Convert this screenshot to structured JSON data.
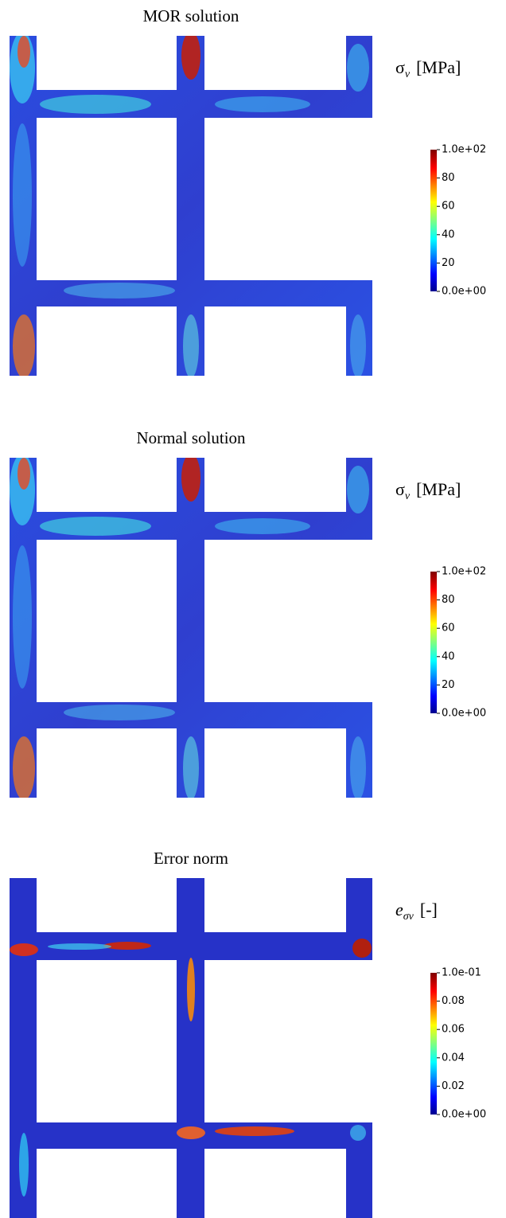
{
  "panels": [
    {
      "title": "MOR solution",
      "colorbar": {
        "symbol": "σ",
        "subscript": "v",
        "unit": "[MPa]",
        "lim": [
          0,
          100
        ],
        "ticks": [
          {
            "value": 100,
            "label": "1.0e+02"
          },
          80,
          60,
          40,
          20,
          {
            "value": 0,
            "label": "0.0e+00"
          }
        ]
      }
    },
    {
      "title": "Normal solution",
      "colorbar": {
        "symbol": "σ",
        "subscript": "v",
        "unit": "[MPa]",
        "lim": [
          0,
          100
        ],
        "ticks": [
          {
            "value": 100,
            "label": "1.0e+02"
          },
          80,
          60,
          40,
          20,
          {
            "value": 0,
            "label": "0.0e+00"
          }
        ]
      }
    },
    {
      "title": "Error norm",
      "colorbar": {
        "symbol": "e",
        "subscript": "σv",
        "unit": "[-]",
        "lim": [
          0,
          0.1
        ],
        "ticks": [
          {
            "value": 0.1,
            "label": "1.0e-01"
          },
          0.08,
          0.06,
          0.04,
          0.02,
          {
            "value": 0,
            "label": "0.0e+00"
          }
        ]
      }
    }
  ]
}
